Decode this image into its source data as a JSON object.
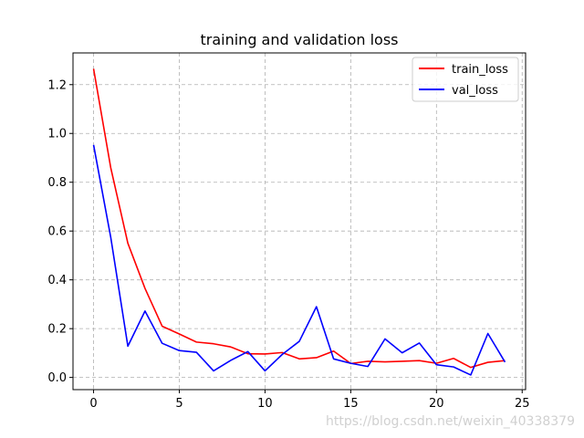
{
  "chart_data": {
    "type": "line",
    "title": "training and validation loss",
    "xlabel": "",
    "ylabel": "",
    "xlim": [
      -1.2,
      25.2
    ],
    "ylim": [
      -0.05,
      1.33
    ],
    "xticks": [
      0,
      5,
      10,
      15,
      20,
      25
    ],
    "yticks": [
      0.0,
      0.2,
      0.4,
      0.6,
      0.8,
      1.0,
      1.2
    ],
    "grid": true,
    "legend_position": "top-right",
    "x": [
      0,
      1,
      2,
      3,
      4,
      5,
      6,
      7,
      8,
      9,
      10,
      11,
      12,
      13,
      14,
      15,
      16,
      17,
      18,
      19,
      20,
      21,
      22,
      23,
      24
    ],
    "series": [
      {
        "name": "train_loss",
        "color": "#ff0000",
        "values": [
          1.265,
          0.86,
          0.55,
          0.365,
          0.21,
          0.178,
          0.145,
          0.138,
          0.125,
          0.097,
          0.096,
          0.102,
          0.076,
          0.081,
          0.108,
          0.057,
          0.066,
          0.064,
          0.066,
          0.069,
          0.058,
          0.078,
          0.041,
          0.062,
          0.069
        ]
      },
      {
        "name": "val_loss",
        "color": "#0000ff",
        "values": [
          0.953,
          0.575,
          0.128,
          0.272,
          0.14,
          0.11,
          0.103,
          0.027,
          0.07,
          0.106,
          0.027,
          0.094,
          0.148,
          0.29,
          0.076,
          0.058,
          0.045,
          0.158,
          0.101,
          0.141,
          0.052,
          0.043,
          0.01,
          0.18,
          0.063
        ]
      }
    ]
  },
  "watermark": "https://blog.csdn.net/weixin_40338379"
}
